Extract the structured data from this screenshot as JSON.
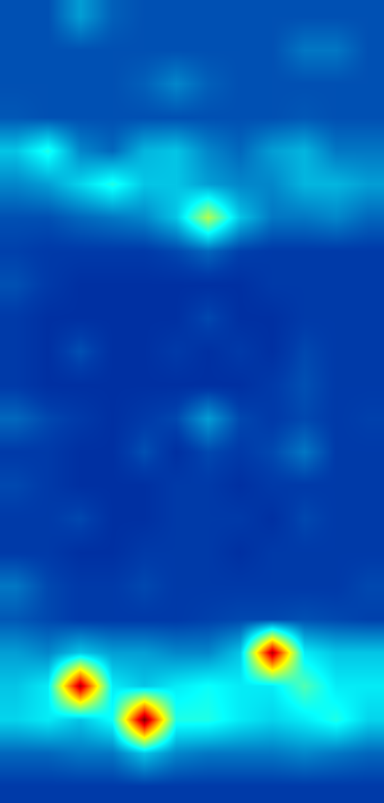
{
  "chart_data": {
    "type": "heatmap",
    "tick_labels": false,
    "zlim": [
      0,
      1
    ],
    "cells": [
      [
        0.15,
        0.15,
        0.25,
        0.17,
        0.15,
        0.15,
        0.15,
        0.15,
        0.15,
        0.15,
        0.15,
        0.15
      ],
      [
        0.15,
        0.15,
        0.15,
        0.15,
        0.15,
        0.15,
        0.15,
        0.15,
        0.15,
        0.2,
        0.2,
        0.15
      ],
      [
        0.15,
        0.15,
        0.15,
        0.15,
        0.17,
        0.22,
        0.17,
        0.15,
        0.15,
        0.15,
        0.15,
        0.15
      ],
      [
        0.16,
        0.15,
        0.15,
        0.15,
        0.15,
        0.15,
        0.15,
        0.15,
        0.15,
        0.16,
        0.15,
        0.15
      ],
      [
        0.3,
        0.4,
        0.22,
        0.18,
        0.28,
        0.3,
        0.22,
        0.18,
        0.25,
        0.28,
        0.2,
        0.2
      ],
      [
        0.22,
        0.25,
        0.32,
        0.4,
        0.3,
        0.3,
        0.25,
        0.22,
        0.22,
        0.28,
        0.28,
        0.25
      ],
      [
        0.15,
        0.15,
        0.18,
        0.2,
        0.22,
        0.3,
        0.55,
        0.3,
        0.2,
        0.2,
        0.22,
        0.18
      ],
      [
        0.13,
        0.12,
        0.12,
        0.12,
        0.12,
        0.14,
        0.18,
        0.13,
        0.12,
        0.12,
        0.12,
        0.12
      ],
      [
        0.15,
        0.12,
        0.1,
        0.1,
        0.1,
        0.1,
        0.1,
        0.1,
        0.12,
        0.12,
        0.12,
        0.12
      ],
      [
        0.12,
        0.1,
        0.1,
        0.1,
        0.1,
        0.1,
        0.14,
        0.1,
        0.1,
        0.12,
        0.12,
        0.12
      ],
      [
        0.12,
        0.1,
        0.15,
        0.1,
        0.1,
        0.12,
        0.1,
        0.12,
        0.1,
        0.14,
        0.12,
        0.12
      ],
      [
        0.12,
        0.1,
        0.1,
        0.1,
        0.1,
        0.1,
        0.1,
        0.1,
        0.12,
        0.15,
        0.12,
        0.12
      ],
      [
        0.18,
        0.14,
        0.12,
        0.1,
        0.12,
        0.14,
        0.25,
        0.14,
        0.12,
        0.14,
        0.12,
        0.13
      ],
      [
        0.12,
        0.12,
        0.1,
        0.1,
        0.15,
        0.1,
        0.14,
        0.12,
        0.14,
        0.2,
        0.12,
        0.12
      ],
      [
        0.14,
        0.12,
        0.1,
        0.1,
        0.1,
        0.12,
        0.12,
        0.1,
        0.12,
        0.12,
        0.12,
        0.12
      ],
      [
        0.12,
        0.12,
        0.14,
        0.1,
        0.1,
        0.12,
        0.12,
        0.12,
        0.1,
        0.14,
        0.12,
        0.12
      ],
      [
        0.12,
        0.12,
        0.1,
        0.1,
        0.12,
        0.12,
        0.12,
        0.1,
        0.12,
        0.12,
        0.12,
        0.12
      ],
      [
        0.2,
        0.14,
        0.12,
        0.12,
        0.14,
        0.12,
        0.12,
        0.12,
        0.12,
        0.12,
        0.12,
        0.14
      ],
      [
        0.16,
        0.14,
        0.12,
        0.12,
        0.12,
        0.12,
        0.13,
        0.14,
        0.14,
        0.15,
        0.14,
        0.13
      ],
      [
        0.25,
        0.22,
        0.3,
        0.25,
        0.25,
        0.22,
        0.22,
        0.3,
        0.95,
        0.35,
        0.3,
        0.3
      ],
      [
        0.3,
        0.35,
        0.95,
        0.35,
        0.3,
        0.35,
        0.38,
        0.35,
        0.35,
        0.45,
        0.35,
        0.35
      ],
      [
        0.32,
        0.35,
        0.3,
        0.38,
        1.0,
        0.4,
        0.4,
        0.35,
        0.32,
        0.35,
        0.4,
        0.32
      ],
      [
        0.18,
        0.18,
        0.2,
        0.2,
        0.3,
        0.22,
        0.2,
        0.2,
        0.2,
        0.22,
        0.2,
        0.18
      ],
      [
        0.12,
        0.12,
        0.12,
        0.12,
        0.12,
        0.12,
        0.12,
        0.12,
        0.12,
        0.12,
        0.12,
        0.12
      ]
    ]
  }
}
